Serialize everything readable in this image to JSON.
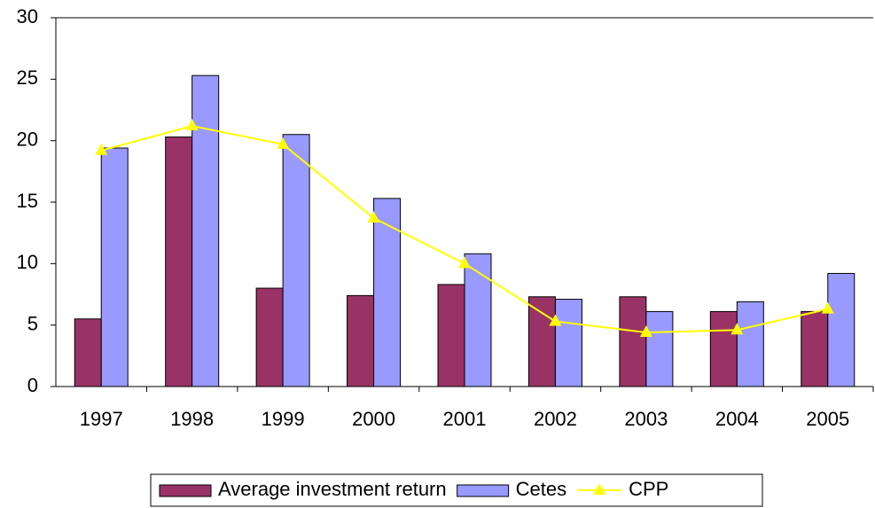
{
  "chart_data": {
    "type": "bar",
    "categories": [
      "1997",
      "1998",
      "1999",
      "2000",
      "2001",
      "2002",
      "2003",
      "2004",
      "2005"
    ],
    "series": [
      {
        "name": "Average investment return",
        "color": "#993366",
        "values": [
          5.5,
          20.3,
          8.0,
          7.4,
          8.3,
          7.3,
          7.3,
          6.1,
          6.1
        ]
      },
      {
        "name": "Cetes",
        "color": "#9999ff",
        "values": [
          19.4,
          25.3,
          20.5,
          15.3,
          10.8,
          7.1,
          6.1,
          6.9,
          9.2
        ]
      },
      {
        "name": "CPP",
        "color": "#ffff00",
        "type": "line",
        "values": [
          19.2,
          21.2,
          19.7,
          13.7,
          10.0,
          5.3,
          4.4,
          4.6,
          6.3
        ]
      }
    ],
    "ylim": [
      0,
      30
    ],
    "yticks": [
      0,
      5,
      10,
      15,
      20,
      25,
      30
    ],
    "grid": false,
    "legend": "bottom"
  }
}
